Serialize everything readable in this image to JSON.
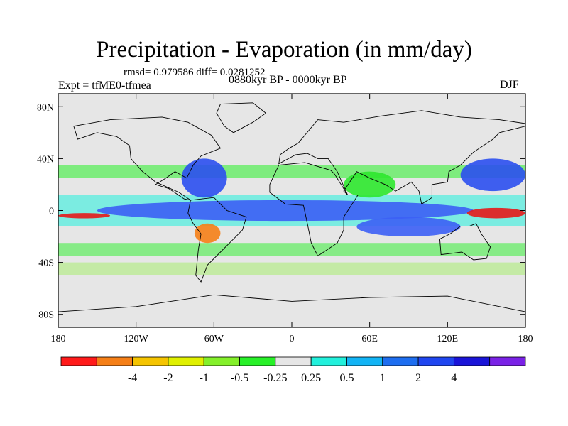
{
  "title": "Precipitation - Evaporation (in mm/day)",
  "stats": "rmsd= 0.979586 diff= 0.0281252",
  "experiment": "Expt = tfME0-tfmea",
  "period": "0880kyr BP - 0000kyr BP",
  "season": "DJF",
  "map": {
    "lat_range": [
      -90,
      90
    ],
    "lon_range": [
      -180,
      180
    ],
    "background": "#e6e6e6",
    "x_ticks": [
      "180",
      "120W",
      "60W",
      "0",
      "60E",
      "120E",
      "180"
    ],
    "x_tick_values": [
      -180,
      -120,
      -60,
      0,
      60,
      120,
      180
    ],
    "y_ticks": [
      "80N",
      "40N",
      "0",
      "40S",
      "80S"
    ],
    "y_tick_values": [
      80,
      40,
      0,
      -40,
      -80
    ],
    "features": [
      {
        "name": "eq-band",
        "color": "#3c5ff5",
        "lon": [
          -150,
          140
        ],
        "lat": [
          -8,
          8
        ]
      },
      {
        "name": "tropical-w-pac-red",
        "color": "#e51a1a",
        "lon": [
          135,
          180
        ],
        "lat": [
          -6,
          2
        ]
      },
      {
        "name": "tropical-e-pac-red",
        "color": "#e51a1a",
        "lon": [
          -180,
          -140
        ],
        "lat": [
          -6,
          -2
        ]
      },
      {
        "name": "n-pac-blue",
        "color": "#2b4ff0",
        "lon": [
          130,
          180
        ],
        "lat": [
          15,
          40
        ]
      },
      {
        "name": "atl-blue",
        "color": "#2b4ff0",
        "lon": [
          -85,
          -50
        ],
        "lat": [
          10,
          40
        ]
      },
      {
        "name": "s-am-orange",
        "color": "#f57f17",
        "lon": [
          -75,
          -55
        ],
        "lat": [
          -25,
          -10
        ]
      },
      {
        "name": "s-ind-blue",
        "color": "#3c5ff5",
        "lon": [
          50,
          130
        ],
        "lat": [
          -20,
          -5
        ]
      },
      {
        "name": "n-ind-green",
        "color": "#2ee82e",
        "lon": [
          40,
          80
        ],
        "lat": [
          10,
          30
        ]
      }
    ]
  },
  "colorbar": {
    "colors": [
      "#ff1a1a",
      "#f57f17",
      "#f5c400",
      "#e0f000",
      "#84f02a",
      "#28f028",
      "#e6e6e6",
      "#22f0dc",
      "#12b4f5",
      "#1e6ef0",
      "#2046f0",
      "#1a14d8",
      "#7a22e6"
    ],
    "labels": [
      "-4",
      "-2",
      "-1",
      "-0.5",
      "-0.25",
      "0.25",
      "0.5",
      "1",
      "2",
      "4"
    ]
  }
}
